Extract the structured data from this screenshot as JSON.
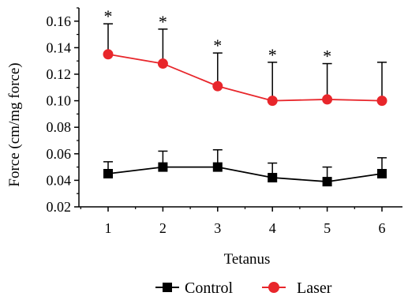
{
  "chart_data": {
    "type": "line",
    "xlabel": "Tetanus",
    "ylabel": "Force (cm/mg force)",
    "categories": [
      1,
      2,
      3,
      4,
      5,
      6
    ],
    "ylim": [
      0.02,
      0.17
    ],
    "yticks": [
      0.02,
      0.04,
      0.06,
      0.08,
      0.1,
      0.12,
      0.14,
      0.16
    ],
    "ytick_labels": [
      "0.02",
      "0.04",
      "0.06",
      "0.08",
      "0.10",
      "0.12",
      "0.14",
      "0.16"
    ],
    "xtick_labels": [
      "1",
      "2",
      "3",
      "4",
      "5",
      "6"
    ],
    "legend_position": "bottom",
    "grid": false,
    "series": [
      {
        "name": "Control",
        "color": "#000000",
        "marker": "square",
        "values": [
          0.045,
          0.05,
          0.05,
          0.042,
          0.039,
          0.045
        ],
        "error_upper": [
          0.054,
          0.062,
          0.063,
          0.053,
          0.05,
          0.057
        ]
      },
      {
        "name": "Laser",
        "color": "#e8262b",
        "marker": "circle",
        "values": [
          0.135,
          0.128,
          0.111,
          0.1,
          0.101,
          0.1
        ],
        "error_upper": [
          0.158,
          0.154,
          0.136,
          0.129,
          0.128,
          0.129
        ]
      }
    ],
    "annotations": [
      {
        "x": 1,
        "text": "*"
      },
      {
        "x": 2,
        "text": "*"
      },
      {
        "x": 3,
        "text": "*"
      },
      {
        "x": 4,
        "text": "*"
      },
      {
        "x": 5,
        "text": "*"
      }
    ]
  }
}
